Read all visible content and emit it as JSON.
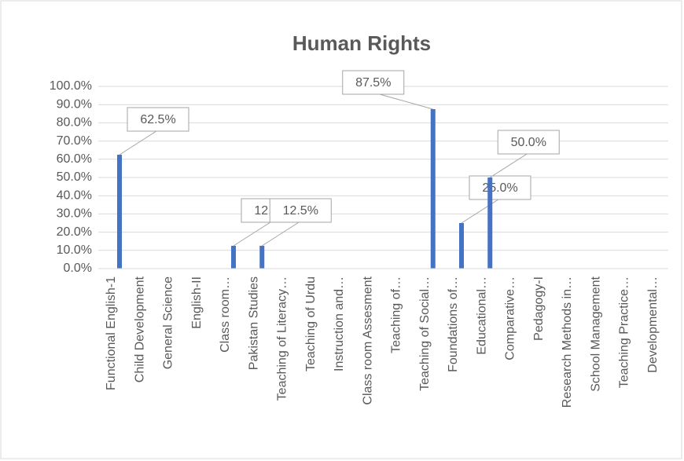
{
  "chart_data": {
    "type": "bar",
    "title": "Human Rights",
    "categories": [
      "Functional English-1",
      "Child Development",
      "General Science",
      "English-II",
      "Class room…",
      "Pakistan Studies",
      "Teaching of Literacy…",
      "Teaching of Urdu",
      "Instruction and…",
      "Class room Assesment",
      "Teaching of…",
      "Teaching of Social…",
      "Foundations of…",
      "Educational…",
      "Comparative…",
      "Pedagogy-I",
      "Research Methods in…",
      "School Management",
      "Teaching Practice…",
      "Developmental…"
    ],
    "values": [
      62.5,
      0,
      0,
      0,
      12.5,
      12.5,
      0,
      0,
      0,
      0,
      0,
      87.5,
      25,
      50,
      0,
      0,
      0,
      0,
      0,
      0
    ],
    "value_labels": [
      "62.5%",
      null,
      null,
      null,
      "12.5%",
      "12.5%",
      null,
      null,
      null,
      null,
      null,
      "87.5%",
      "25.0%",
      "50.0%",
      null,
      null,
      null,
      null,
      null,
      null
    ],
    "color": "#4472c4",
    "ylim": [
      0,
      100
    ],
    "yticks": [
      {
        "value": 0,
        "label": "0.0%"
      },
      {
        "value": 10,
        "label": "10.0%"
      },
      {
        "value": 20,
        "label": "20.0%"
      },
      {
        "value": 30,
        "label": "30.0%"
      },
      {
        "value": 40,
        "label": "40.0%"
      },
      {
        "value": 50,
        "label": "50.0%"
      },
      {
        "value": 60,
        "label": "60.0%"
      },
      {
        "value": 70,
        "label": "70.0%"
      },
      {
        "value": 80,
        "label": "80.0%"
      },
      {
        "value": 90,
        "label": "90.0%"
      },
      {
        "value": 100,
        "label": "100.0%"
      }
    ],
    "grid": true
  }
}
